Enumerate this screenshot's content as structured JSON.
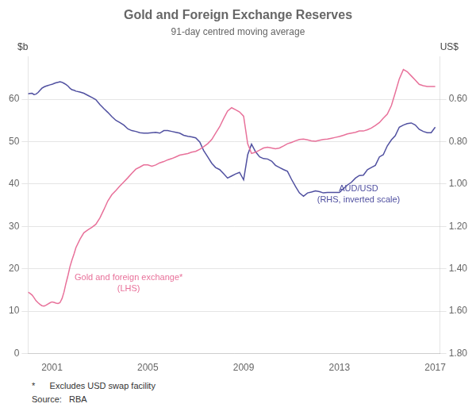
{
  "chart_data": {
    "type": "line",
    "title": "Gold and Foreign Exchange Reserves",
    "subtitle": "91-day centred moving average",
    "ylabel": "$b",
    "y2label": "US$",
    "footnote": "*      Excludes USD swap facility",
    "source": "Source:   RBA",
    "xlim": [
      2000.0,
      2017.2
    ],
    "xticks": [
      2001,
      2005,
      2009,
      2013,
      2017
    ],
    "ylim": [
      0,
      70
    ],
    "yticks": [
      0,
      10,
      20,
      30,
      40,
      50,
      60
    ],
    "y2lim": [
      1.8,
      0.4
    ],
    "y2ticks": [
      {
        "value": 0.6,
        "label": "0.60"
      },
      {
        "value": 0.8,
        "label": "0.80"
      },
      {
        "value": 1.0,
        "label": "1.00"
      },
      {
        "value": 1.2,
        "label": "1.20"
      },
      {
        "value": 1.4,
        "label": "1.40"
      },
      {
        "value": 1.6,
        "label": "1.60"
      },
      {
        "value": 1.8,
        "label": "1.80"
      }
    ],
    "grid": "y",
    "annotations": [
      {
        "text": "Gold and foreign exchange*\n(LHS)",
        "x": 2004.2,
        "y": 16.5,
        "color": "#E8719A"
      },
      {
        "text": "AUD/USD\n(RHS, inverted scale)",
        "x": 2013.8,
        "y": 37.5,
        "color": "#5050A0"
      }
    ],
    "x": [
      2000.0,
      2000.08,
      2000.17,
      2000.25,
      2000.33,
      2000.42,
      2000.5,
      2000.58,
      2000.67,
      2000.75,
      2000.83,
      2000.92,
      2001.0,
      2001.08,
      2001.17,
      2001.25,
      2001.33,
      2001.42,
      2001.5,
      2001.58,
      2001.67,
      2001.75,
      2001.83,
      2001.92,
      2002.0,
      2002.17,
      2002.33,
      2002.5,
      2002.67,
      2002.83,
      2003.0,
      2003.17,
      2003.33,
      2003.5,
      2003.67,
      2003.83,
      2004.0,
      2004.17,
      2004.33,
      2004.5,
      2004.67,
      2004.83,
      2005.0,
      2005.17,
      2005.33,
      2005.5,
      2005.67,
      2005.83,
      2006.0,
      2006.17,
      2006.33,
      2006.5,
      2006.67,
      2006.83,
      2007.0,
      2007.17,
      2007.33,
      2007.5,
      2007.67,
      2007.83,
      2008.0,
      2008.17,
      2008.33,
      2008.5,
      2008.67,
      2008.83,
      2009.0,
      2009.17,
      2009.33,
      2009.5,
      2009.67,
      2009.83,
      2010.0,
      2010.17,
      2010.33,
      2010.5,
      2010.67,
      2010.83,
      2011.0,
      2011.17,
      2011.33,
      2011.5,
      2011.67,
      2011.83,
      2012.0,
      2012.17,
      2012.33,
      2012.5,
      2012.67,
      2012.83,
      2013.0,
      2013.17,
      2013.33,
      2013.5,
      2013.67,
      2013.83,
      2014.0,
      2014.17,
      2014.33,
      2014.5,
      2014.67,
      2014.83,
      2015.0,
      2015.17,
      2015.33,
      2015.5,
      2015.67,
      2015.83,
      2016.0,
      2016.17,
      2016.33,
      2016.5,
      2016.67,
      2016.83,
      2017.0
    ],
    "series": [
      {
        "color": "#E8719A",
        "values": [
          14.5,
          14.2,
          13.8,
          13.2,
          12.5,
          12.0,
          11.6,
          11.3,
          11.2,
          11.4,
          11.7,
          12.0,
          12.2,
          12.1,
          11.9,
          11.8,
          12.0,
          13.0,
          14.5,
          16.5,
          18.5,
          20.5,
          22.0,
          23.5,
          25.0,
          27.0,
          28.5,
          29.2,
          29.8,
          30.5,
          32.0,
          34.0,
          36.0,
          37.5,
          38.5,
          39.5,
          40.5,
          41.5,
          42.5,
          43.5,
          44.0,
          44.5,
          44.5,
          44.2,
          44.5,
          45.0,
          45.3,
          45.7,
          46.0,
          46.4,
          46.8,
          47.0,
          47.2,
          47.5,
          47.7,
          48.2,
          48.8,
          49.5,
          50.5,
          52.0,
          53.5,
          55.5,
          57.2,
          58.0,
          57.5,
          57.0,
          56.0,
          49.5,
          47.2,
          47.5,
          48.0,
          48.5,
          48.7,
          48.5,
          48.3,
          48.5,
          49.0,
          49.5,
          49.8,
          50.2,
          50.5,
          50.6,
          50.4,
          50.2,
          50.1,
          50.3,
          50.5,
          50.6,
          50.8,
          51.0,
          51.2,
          51.5,
          51.8,
          52.0,
          52.2,
          52.5,
          52.5,
          52.8,
          53.2,
          53.8,
          54.5,
          55.5,
          56.5,
          58.5,
          61.5,
          64.8,
          67.0,
          66.5,
          65.5,
          64.5,
          63.5,
          63.2,
          63.0,
          63.0,
          63.0
        ]
      },
      {
        "color": "#5050A0",
        "axis": "y2",
        "values": [
          0.575,
          0.573,
          0.572,
          0.578,
          0.576,
          0.568,
          0.558,
          0.548,
          0.542,
          0.538,
          0.535,
          0.532,
          0.53,
          0.526,
          0.522,
          0.52,
          0.518,
          0.52,
          0.525,
          0.53,
          0.538,
          0.548,
          0.555,
          0.558,
          0.562,
          0.566,
          0.572,
          0.582,
          0.592,
          0.602,
          0.625,
          0.645,
          0.662,
          0.682,
          0.7,
          0.71,
          0.722,
          0.74,
          0.748,
          0.752,
          0.758,
          0.76,
          0.76,
          0.758,
          0.756,
          0.76,
          0.748,
          0.748,
          0.752,
          0.756,
          0.76,
          0.77,
          0.775,
          0.778,
          0.782,
          0.802,
          0.842,
          0.872,
          0.902,
          0.922,
          0.932,
          0.952,
          0.972,
          0.962,
          0.952,
          0.945,
          0.98,
          0.862,
          0.812,
          0.848,
          0.872,
          0.88,
          0.882,
          0.892,
          0.912,
          0.922,
          0.932,
          0.94,
          0.978,
          1.012,
          1.042,
          1.058,
          1.042,
          1.038,
          1.032,
          1.036,
          1.042,
          1.04,
          1.04,
          1.04,
          1.04,
          1.022,
          1.005,
          0.992,
          0.972,
          0.96,
          0.958,
          0.932,
          0.922,
          0.912,
          0.872,
          0.862,
          0.82,
          0.792,
          0.772,
          0.732,
          0.722,
          0.715,
          0.712,
          0.722,
          0.742,
          0.752,
          0.758,
          0.758,
          0.732
        ]
      }
    ]
  }
}
